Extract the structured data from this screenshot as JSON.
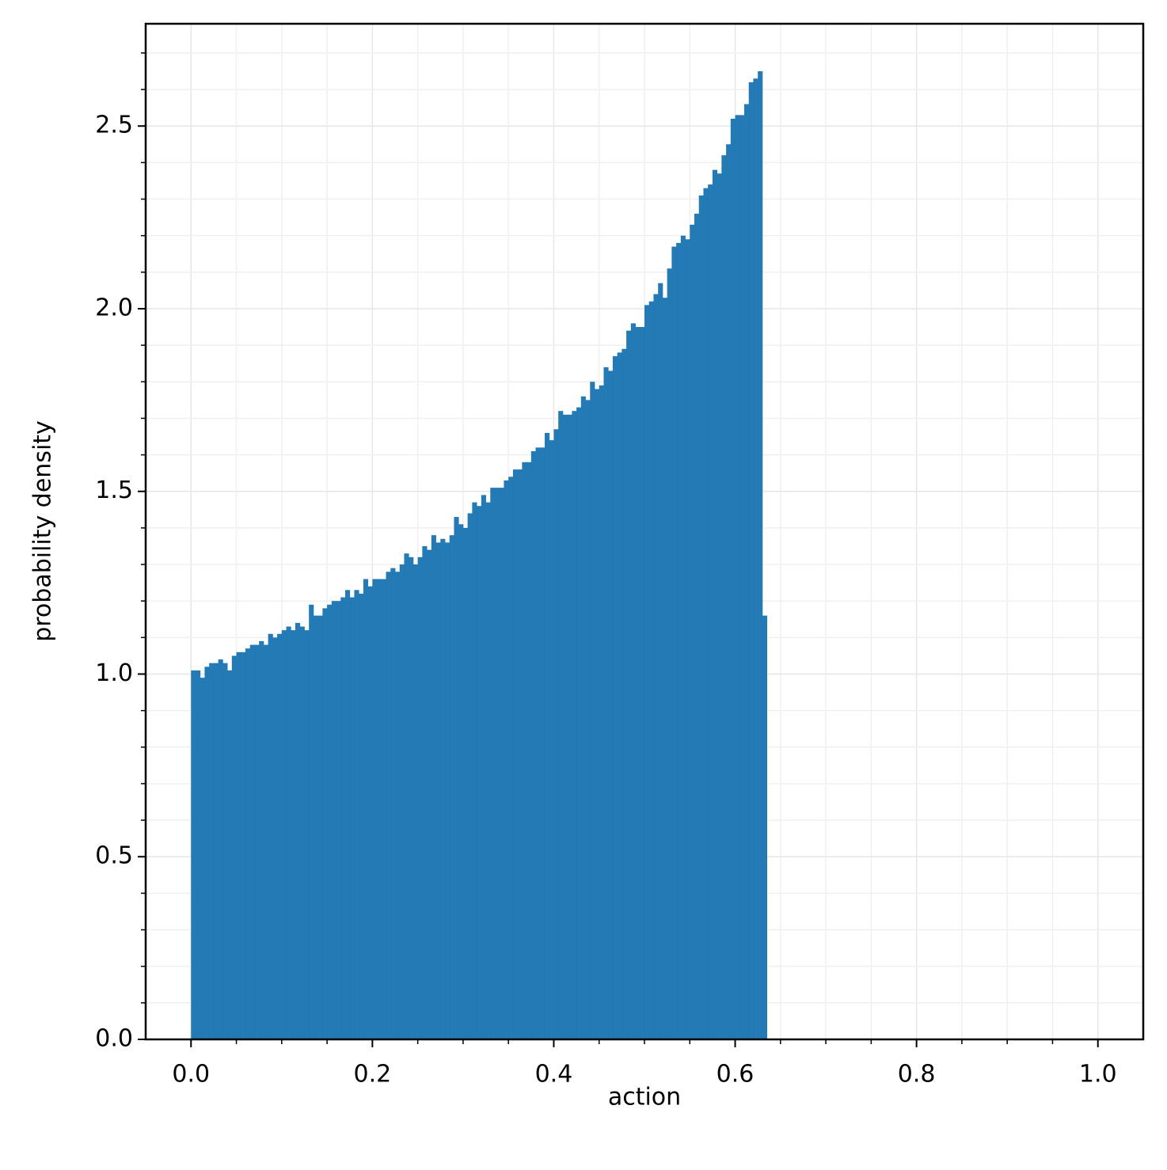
{
  "chart_data": {
    "type": "histogram",
    "x_label": "action",
    "y_label": "probability density",
    "color": "#2077b4",
    "bins": [
      0,
      0.005,
      0.01,
      0.015,
      0.02,
      0.025,
      0.03,
      0.035,
      0.04,
      0.045,
      0.05,
      0.055,
      0.06,
      0.065,
      0.07,
      0.075,
      0.08,
      0.085,
      0.09,
      0.095,
      0.1,
      0.105,
      0.11,
      0.115,
      0.12,
      0.125,
      0.13,
      0.135,
      0.14,
      0.145,
      0.15,
      0.155,
      0.16,
      0.165,
      0.17,
      0.175,
      0.18,
      0.185,
      0.19,
      0.195,
      0.2,
      0.205,
      0.21,
      0.215,
      0.22,
      0.225,
      0.23,
      0.235,
      0.24,
      0.245,
      0.25,
      0.255,
      0.26,
      0.265,
      0.27,
      0.275,
      0.28,
      0.285,
      0.29,
      0.295,
      0.3,
      0.305,
      0.31,
      0.315,
      0.32,
      0.325,
      0.33,
      0.335,
      0.34,
      0.345,
      0.35,
      0.355,
      0.36,
      0.365,
      0.37,
      0.375,
      0.38,
      0.385,
      0.39,
      0.395,
      0.4,
      0.405,
      0.41,
      0.415,
      0.42,
      0.425,
      0.43,
      0.435,
      0.44,
      0.445,
      0.45,
      0.455,
      0.46,
      0.465,
      0.47,
      0.475,
      0.48,
      0.485,
      0.49,
      0.495,
      0.5,
      0.505,
      0.51,
      0.515,
      0.52,
      0.525,
      0.53,
      0.535,
      0.54,
      0.545,
      0.55,
      0.555,
      0.56,
      0.565,
      0.57,
      0.575,
      0.58,
      0.585,
      0.59,
      0.595,
      0.6,
      0.605,
      0.61,
      0.615,
      0.62,
      0.625,
      0.63,
      0.635
    ],
    "values": [
      1.01,
      1.01,
      0.99,
      1.02,
      1.03,
      1.03,
      1.04,
      1.03,
      1.01,
      1.05,
      1.06,
      1.06,
      1.07,
      1.08,
      1.08,
      1.09,
      1.08,
      1.11,
      1.1,
      1.11,
      1.12,
      1.13,
      1.12,
      1.14,
      1.13,
      1.12,
      1.19,
      1.16,
      1.16,
      1.18,
      1.19,
      1.2,
      1.2,
      1.21,
      1.23,
      1.21,
      1.23,
      1.22,
      1.26,
      1.24,
      1.26,
      1.26,
      1.26,
      1.28,
      1.29,
      1.28,
      1.3,
      1.33,
      1.32,
      1.3,
      1.32,
      1.35,
      1.34,
      1.38,
      1.36,
      1.37,
      1.36,
      1.38,
      1.43,
      1.41,
      1.4,
      1.44,
      1.47,
      1.46,
      1.49,
      1.47,
      1.51,
      1.51,
      1.51,
      1.53,
      1.54,
      1.56,
      1.56,
      1.58,
      1.58,
      1.61,
      1.62,
      1.62,
      1.66,
      1.64,
      1.67,
      1.72,
      1.71,
      1.71,
      1.72,
      1.73,
      1.76,
      1.75,
      1.8,
      1.78,
      1.79,
      1.84,
      1.83,
      1.87,
      1.88,
      1.89,
      1.94,
      1.96,
      1.95,
      1.95,
      2.01,
      2.02,
      2.04,
      2.07,
      2.03,
      2.11,
      2.17,
      2.18,
      2.2,
      2.19,
      2.23,
      2.26,
      2.31,
      2.33,
      2.34,
      2.38,
      2.37,
      2.42,
      2.45,
      2.52,
      2.53,
      2.53,
      2.56,
      2.62,
      2.63,
      2.65,
      1.16
    ],
    "xlim": [
      -0.05,
      1.05
    ],
    "ylim": [
      0,
      2.78
    ],
    "xticks": [
      {
        "value": 0,
        "label": "0.0"
      },
      0.2,
      0.4,
      0.6,
      0.8,
      {
        "value": 1,
        "label": "1.0"
      }
    ],
    "yticks": [
      {
        "value": 0,
        "label": "0.0"
      },
      0.5,
      {
        "value": 1,
        "label": "1.0"
      },
      1.5,
      {
        "value": 2,
        "label": "2.0"
      },
      2.5
    ],
    "xminorticks": [
      0.05,
      0.1,
      0.15,
      0.25,
      0.3,
      0.35,
      0.45,
      0.5,
      0.55,
      0.65,
      0.7,
      0.75,
      0.85,
      0.9,
      0.95
    ],
    "yminorticks": [
      0.1,
      0.2,
      0.3,
      0.4,
      0.6,
      0.7,
      0.8,
      0.9,
      1.1,
      1.2,
      1.3,
      1.4,
      1.6,
      1.7,
      1.8,
      1.9,
      2.1,
      2.2,
      2.3,
      2.4,
      2.6,
      2.7
    ],
    "grid": true
  }
}
